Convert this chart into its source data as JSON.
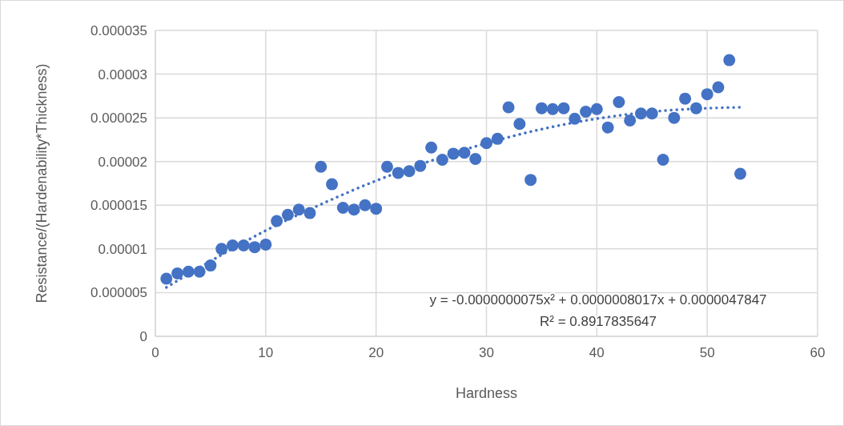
{
  "chart_data": {
    "type": "scatter",
    "xlabel": "Hardness",
    "ylabel": "Resistance/(Hardenability*Thickness)",
    "xlim": [
      0,
      60
    ],
    "xticks": [
      0,
      10,
      20,
      30,
      40,
      50,
      60
    ],
    "ylim": [
      0,
      3.5e-05
    ],
    "yticks": [
      0,
      {
        "value": 5e-06,
        "label": "0.000005"
      },
      {
        "value": 1e-05,
        "label": "0.00001"
      },
      {
        "value": 1.5e-05,
        "label": "0.000015"
      },
      {
        "value": 2e-05,
        "label": "0.00002"
      },
      {
        "value": 2.5e-05,
        "label": "0.000025"
      },
      {
        "value": 3e-05,
        "label": "0.00003"
      },
      {
        "value": 3.5e-05,
        "label": "0.000035"
      }
    ],
    "grid": true,
    "marker": "circle",
    "series": [
      {
        "color": "#4472c4",
        "x": [
          1,
          2,
          3,
          4,
          5,
          6,
          7,
          8,
          9,
          10,
          11,
          12,
          13,
          14,
          15,
          16,
          17,
          18,
          19,
          20,
          21,
          22,
          23,
          24,
          25,
          26,
          27,
          28,
          29,
          30,
          31,
          32,
          33,
          34,
          35,
          36,
          37,
          38,
          39,
          40,
          41,
          42,
          43,
          44,
          45,
          46,
          47,
          48,
          49,
          50,
          51,
          52,
          53
        ],
        "values": [
          6.6e-06,
          7.2e-06,
          7.4e-06,
          7.4e-06,
          8.1e-06,
          1e-05,
          1.04e-05,
          1.04e-05,
          1.02e-05,
          1.05e-05,
          1.32e-05,
          1.39e-05,
          1.45e-05,
          1.41e-05,
          1.94e-05,
          1.74e-05,
          1.47e-05,
          1.45e-05,
          1.5e-05,
          1.46e-05,
          1.94e-05,
          1.87e-05,
          1.89e-05,
          1.95e-05,
          2.16e-05,
          2.02e-05,
          2.09e-05,
          2.1e-05,
          2.03e-05,
          2.21e-05,
          2.26e-05,
          2.62e-05,
          2.43e-05,
          1.79e-05,
          2.61e-05,
          2.6e-05,
          2.61e-05,
          2.49e-05,
          2.57e-05,
          2.6e-05,
          2.39e-05,
          2.68e-05,
          2.47e-05,
          2.55e-05,
          2.55e-05,
          2.02e-05,
          2.5e-05,
          2.72e-05,
          2.61e-05,
          2.77e-05,
          2.85e-05,
          3.16e-05,
          1.86e-05
        ]
      },
      {
        "type": "line",
        "color": "#4472c4",
        "line_style": "dotted",
        "marker": "none",
        "x": [
          1,
          5,
          10,
          15,
          20,
          25,
          30,
          35,
          40,
          45,
          50,
          53
        ],
        "values": [
          5.6e-06,
          8.6e-06,
          1.21e-05,
          1.51e-05,
          1.78e-05,
          2.01e-05,
          2.21e-05,
          2.37e-05,
          2.49e-05,
          2.57e-05,
          2.61e-05,
          2.62e-05
        ]
      }
    ],
    "annotations": [
      "y = -0.0000000075x² + 0.0000008017x + 0.0000047847",
      "R² = 0.8917835647"
    ]
  }
}
